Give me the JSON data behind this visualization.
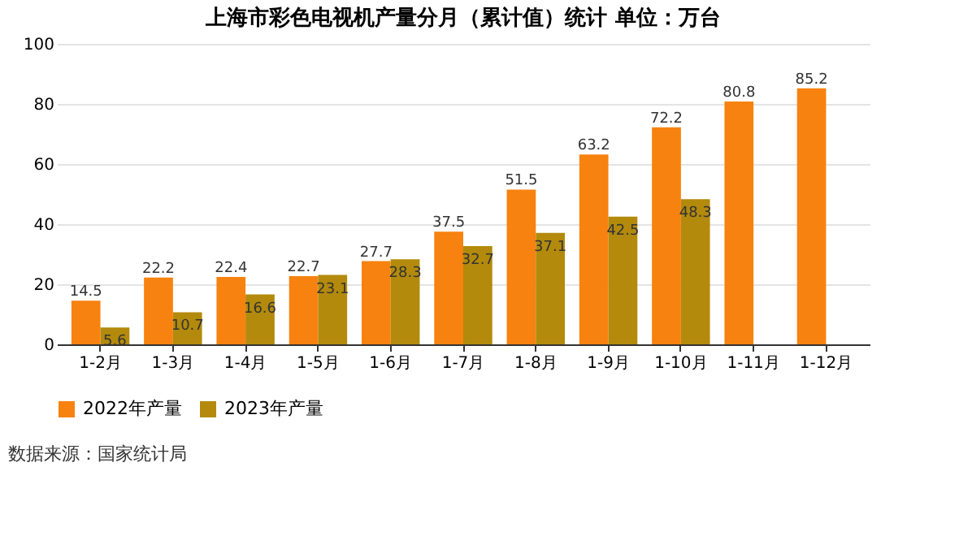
{
  "chart_data": {
    "type": "bar",
    "title": "上海市彩色电视机产量分月（累计值）统计  单位：万台",
    "categories": [
      "1-2月",
      "1-3月",
      "1-4月",
      "1-5月",
      "1-6月",
      "1-7月",
      "1-8月",
      "1-9月",
      "1-10月",
      "1-11月",
      "1-12月"
    ],
    "series": [
      {
        "name": "2022年产量",
        "color": "#f7820f",
        "values": [
          14.5,
          22.2,
          22.4,
          22.7,
          27.7,
          37.5,
          51.5,
          63.2,
          72.2,
          80.8,
          85.2
        ]
      },
      {
        "name": "2023年产量",
        "color": "#b38a0c",
        "values": [
          5.6,
          10.7,
          16.6,
          23.1,
          28.3,
          32.7,
          37.1,
          42.5,
          48.3,
          null,
          null
        ]
      }
    ],
    "ylim": [
      0,
      100
    ],
    "yticks": [
      0,
      20,
      40,
      60,
      80,
      100
    ],
    "grid": "y",
    "legend": "bottom",
    "data_labels": true,
    "annotations": [
      "数据来源：国家统计局"
    ]
  }
}
